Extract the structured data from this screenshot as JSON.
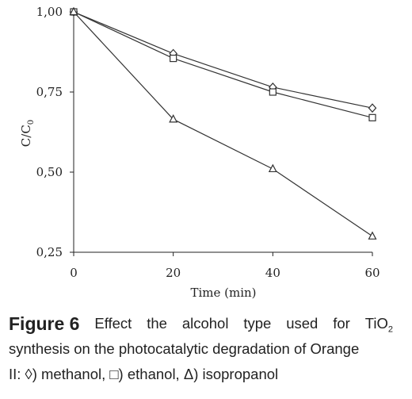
{
  "chart_data": {
    "type": "line",
    "x": [
      0,
      20,
      40,
      60
    ],
    "xlabel": "Time (min)",
    "ylabel": "C/C",
    "ylabel_sub": "0",
    "xlim": [
      0,
      60
    ],
    "ylim": [
      0.25,
      1.0
    ],
    "xticks": [
      "0",
      "20",
      "40",
      "60"
    ],
    "yticks": [
      "0,25",
      "0,50",
      "0,75",
      "1,00"
    ],
    "series": [
      {
        "marker": "diamond",
        "values": [
          1.0,
          0.87,
          0.765,
          0.7
        ]
      },
      {
        "marker": "square",
        "values": [
          1.0,
          0.855,
          0.75,
          0.67
        ]
      },
      {
        "marker": "triangle",
        "values": [
          1.0,
          0.665,
          0.51,
          0.3
        ]
      }
    ],
    "grid": false,
    "legend": "none"
  },
  "caption": {
    "label": "Figure  6",
    "words1": [
      "Effect",
      "the",
      "alcohol",
      "type",
      "used",
      "for"
    ],
    "tio_main": "TiO",
    "tio_sub": "2",
    "line2": "synthesis on the photocatalytic degradation of Orange",
    "line3": "II: ◊) methanol, □) ethanol, Δ) isopropanol"
  }
}
